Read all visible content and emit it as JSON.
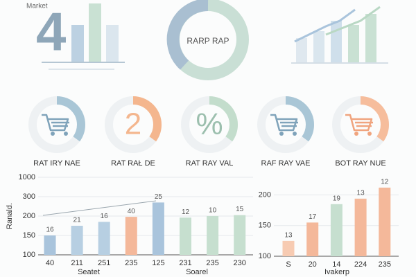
{
  "header": {
    "label": "Market",
    "big_number": "4",
    "donut_label": "RARP RAP"
  },
  "dials": [
    {
      "label": "RAT IRY NAE",
      "color": "#a9c6d6"
    },
    {
      "label": "RAT RAŁ DE",
      "color": "#f4b68e",
      "center_text": "2"
    },
    {
      "label": "RAT RAY VAL",
      "color": "#c3ddcc",
      "center_text": "%"
    },
    {
      "label": "RAF RAY VAE",
      "color": "#a9c6d6"
    },
    {
      "label": "BOT RAY NUE",
      "color": "#f6bd9c"
    }
  ],
  "chart_data": [
    {
      "type": "bar",
      "ylabel": "Ranald.",
      "xlabels": [
        "Seatet",
        "Soarel"
      ],
      "categories": [
        "40",
        "211",
        "251",
        "235",
        "125",
        "231",
        "235",
        "230"
      ],
      "values": [
        150,
        175,
        185,
        198,
        270,
        196,
        200,
        205
      ],
      "bar_annotations": [
        16,
        21,
        16,
        40,
        25,
        12,
        10,
        15
      ],
      "colors": [
        "#a9c4dc",
        "#b7cfe2",
        "#b7cfe2",
        "#f4b89a",
        "#a9c4dc",
        "#c6dfcf",
        "#c6dfcf",
        "#c6dfcf"
      ],
      "ylim": [
        100,
        1000
      ],
      "yticks": [
        100,
        150,
        200,
        300,
        1000
      ],
      "grid": true
    },
    {
      "type": "bar",
      "xlabel": "Ivakerp",
      "categories": [
        "S",
        "20",
        "14",
        "224",
        "235"
      ],
      "values": [
        125,
        155,
        185,
        194,
        212
      ],
      "bar_annotations": [
        13,
        17,
        19,
        13,
        12
      ],
      "colors": [
        "#f7cbb2",
        "#f4b89a",
        "#c6dfcf",
        "#f4b89a",
        "#f4b89a"
      ],
      "ylim": [
        100,
        230
      ],
      "yticks": [
        100,
        150,
        200
      ],
      "grid": true
    }
  ]
}
